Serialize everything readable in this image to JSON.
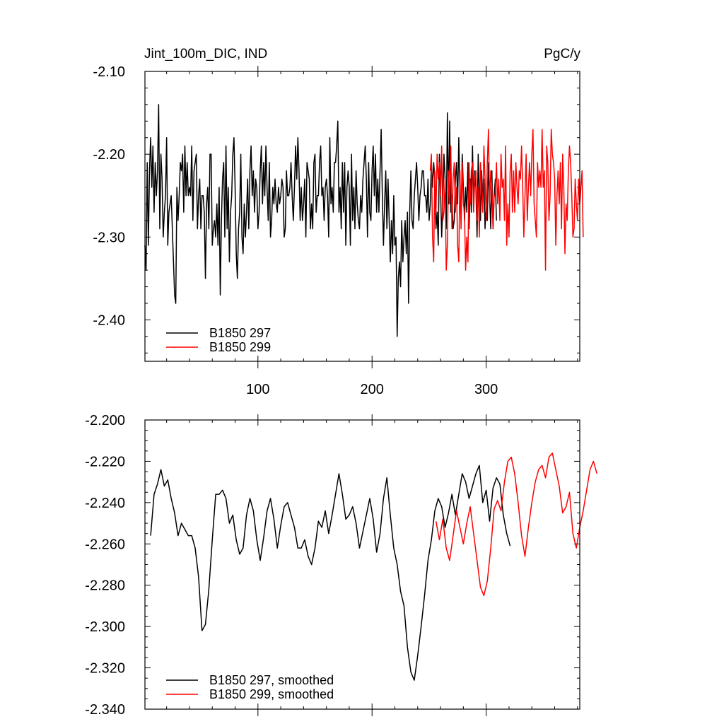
{
  "chart_data": [
    {
      "type": "line",
      "title": "Jint_100m_DIC, IND",
      "units": "PgC/y",
      "xlabel": "",
      "ylabel": "",
      "xlim": [
        1,
        382
      ],
      "ylim": [
        -2.45,
        -2.1
      ],
      "xticks": [
        100,
        200,
        300
      ],
      "xtick_labels": [
        "100",
        "200",
        "300"
      ],
      "yticks": [
        -2.1,
        -2.2,
        -2.3,
        -2.4
      ],
      "ytick_labels": [
        "-2.10",
        "-2.20",
        "-2.30",
        "-2.40"
      ],
      "legend_position": "bottom-left",
      "series": [
        {
          "name": "B1850 297",
          "color": "#000000",
          "x_start": 1,
          "x_step": 1,
          "values": [
            -2.31,
            -2.34,
            -2.21,
            -2.31,
            -2.22,
            -2.18,
            -2.24,
            -2.19,
            -2.27,
            -2.21,
            -2.25,
            -2.22,
            -2.14,
            -2.29,
            -2.2,
            -2.23,
            -2.3,
            -2.27,
            -2.25,
            -2.18,
            -2.31,
            -2.27,
            -2.26,
            -2.25,
            -2.29,
            -2.33,
            -2.37,
            -2.38,
            -2.24,
            -2.28,
            -2.25,
            -2.21,
            -2.22,
            -2.2,
            -2.27,
            -2.19,
            -2.25,
            -2.21,
            -2.25,
            -2.24,
            -2.25,
            -2.19,
            -2.28,
            -2.22,
            -2.21,
            -2.2,
            -2.29,
            -2.25,
            -2.23,
            -2.29,
            -2.25,
            -2.25,
            -2.27,
            -2.35,
            -2.26,
            -2.24,
            -2.29,
            -2.2,
            -2.2,
            -2.31,
            -2.29,
            -2.28,
            -2.3,
            -2.26,
            -2.31,
            -2.24,
            -2.37,
            -2.28,
            -2.23,
            -2.21,
            -2.3,
            -2.19,
            -2.29,
            -2.24,
            -2.33,
            -2.27,
            -2.25,
            -2.2,
            -2.18,
            -2.24,
            -2.32,
            -2.35,
            -2.29,
            -2.27,
            -2.2,
            -2.3,
            -2.32,
            -2.26,
            -2.3,
            -2.27,
            -2.23,
            -2.29,
            -2.22,
            -2.19,
            -2.25,
            -2.22,
            -2.27,
            -2.23,
            -2.24,
            -2.29,
            -2.27,
            -2.22,
            -2.19,
            -2.26,
            -2.21,
            -2.25,
            -2.19,
            -2.24,
            -2.28,
            -2.21,
            -2.3,
            -2.28,
            -2.24,
            -2.26,
            -2.23,
            -2.26,
            -2.27,
            -2.24,
            -2.26,
            -2.25,
            -2.23,
            -2.24,
            -2.3,
            -2.29,
            -2.22,
            -2.25,
            -2.25,
            -2.24,
            -2.21,
            -2.25,
            -2.28,
            -2.24,
            -2.19,
            -2.23,
            -2.18,
            -2.22,
            -2.28,
            -2.24,
            -2.28,
            -2.26,
            -2.23,
            -2.3,
            -2.21,
            -2.22,
            -2.23,
            -2.29,
            -2.26,
            -2.29,
            -2.21,
            -2.2,
            -2.27,
            -2.25,
            -2.25,
            -2.21,
            -2.19,
            -2.25,
            -2.24,
            -2.28,
            -2.24,
            -2.23,
            -2.25,
            -2.3,
            -2.18,
            -2.26,
            -2.24,
            -2.27,
            -2.21,
            -2.21,
            -2.19,
            -2.16,
            -2.27,
            -2.24,
            -2.29,
            -2.21,
            -2.27,
            -2.21,
            -2.31,
            -2.24,
            -2.22,
            -2.24,
            -2.31,
            -2.2,
            -2.28,
            -2.24,
            -2.29,
            -2.22,
            -2.26,
            -2.28,
            -2.29,
            -2.25,
            -2.27,
            -2.23,
            -2.21,
            -2.19,
            -2.23,
            -2.3,
            -2.21,
            -2.27,
            -2.28,
            -2.22,
            -2.19,
            -2.25,
            -2.2,
            -2.27,
            -2.23,
            -2.27,
            -2.22,
            -2.17,
            -2.25,
            -2.31,
            -2.26,
            -2.22,
            -2.29,
            -2.23,
            -2.28,
            -2.33,
            -2.28,
            -2.32,
            -2.25,
            -2.31,
            -2.3,
            -2.42,
            -2.35,
            -2.33,
            -2.36,
            -2.28,
            -2.33,
            -2.3,
            -2.28,
            -2.32,
            -2.27,
            -2.38,
            -2.27,
            -2.22,
            -2.28,
            -2.29,
            -2.25,
            -2.23,
            -2.21,
            -2.24,
            -2.28,
            -2.25,
            -2.24,
            -2.22,
            -2.22,
            -2.25,
            -2.25,
            -2.27,
            -2.23,
            -2.28,
            -2.26,
            -2.21,
            -2.24,
            -2.21,
            -2.23,
            -2.29,
            -2.27,
            -2.31,
            -2.2,
            -2.24,
            -2.3,
            -2.26,
            -2.2,
            -2.23,
            -2.29,
            -2.15,
            -2.26,
            -2.16,
            -2.27,
            -2.25,
            -2.29,
            -2.28,
            -2.23,
            -2.21,
            -2.26,
            -2.18,
            -2.25,
            -2.28,
            -2.2,
            -2.24,
            -2.28,
            -2.24,
            -2.27,
            -2.21,
            -2.29,
            -2.23,
            -2.27,
            -2.19,
            -2.26,
            -2.22,
            -2.24,
            -2.3,
            -2.2,
            -2.25,
            -2.28,
            -2.22,
            -2.26,
            -2.23,
            -2.29,
            -2.26,
            -2.28,
            -2.21,
            -2.25,
            -2.29,
            -2.22,
            -2.29,
            -2.25,
            -2.23,
            -2.28
          ]
        },
        {
          "name": "B1850 299",
          "color": "#ff0000",
          "x_start": 251,
          "x_step": 1,
          "values": [
            -2.22,
            -2.2,
            -2.3,
            -2.33,
            -2.22,
            -2.27,
            -2.2,
            -2.23,
            -2.21,
            -2.25,
            -2.19,
            -2.28,
            -2.27,
            -2.23,
            -2.34,
            -2.31,
            -2.22,
            -2.26,
            -2.19,
            -2.29,
            -2.23,
            -2.21,
            -2.27,
            -2.24,
            -2.31,
            -2.33,
            -2.22,
            -2.29,
            -2.21,
            -2.26,
            -2.27,
            -2.34,
            -2.3,
            -2.33,
            -2.21,
            -2.26,
            -2.22,
            -2.21,
            -2.27,
            -2.23,
            -2.22,
            -2.28,
            -2.24,
            -2.3,
            -2.21,
            -2.24,
            -2.27,
            -2.19,
            -2.23,
            -2.28,
            -2.21,
            -2.17,
            -2.26,
            -2.22,
            -2.24,
            -2.29,
            -2.25,
            -2.25,
            -2.21,
            -2.26,
            -2.23,
            -2.28,
            -2.2,
            -2.24,
            -2.23,
            -2.28,
            -2.19,
            -2.31,
            -2.26,
            -2.3,
            -2.22,
            -2.2,
            -2.27,
            -2.22,
            -2.27,
            -2.21,
            -2.24,
            -2.26,
            -2.22,
            -2.23,
            -2.19,
            -2.24,
            -2.3,
            -2.25,
            -2.2,
            -2.28,
            -2.24,
            -2.21,
            -2.25,
            -2.2,
            -2.17,
            -2.26,
            -2.28,
            -2.3,
            -2.21,
            -2.24,
            -2.22,
            -2.24,
            -2.17,
            -2.24,
            -2.22,
            -2.34,
            -2.19,
            -2.21,
            -2.28,
            -2.25,
            -2.17,
            -2.2,
            -2.21,
            -2.23,
            -2.31,
            -2.25,
            -2.22,
            -2.26,
            -2.21,
            -2.29,
            -2.2,
            -2.24,
            -2.32,
            -2.26,
            -2.28,
            -2.22,
            -2.19,
            -2.21,
            -2.25,
            -2.3,
            -2.29,
            -2.23,
            -2.26,
            -2.28,
            -2.23,
            -2.26,
            -2.24,
            -2.22,
            -2.3
          ]
        }
      ]
    },
    {
      "type": "line",
      "title": "",
      "xlabel": "",
      "ylabel": "",
      "xlim": [
        1,
        382
      ],
      "ylim": [
        -2.34,
        -2.2
      ],
      "xticks": [
        100,
        200,
        300
      ],
      "xtick_labels": [
        "",
        "",
        ""
      ],
      "yticks": [
        -2.2,
        -2.22,
        -2.24,
        -2.26,
        -2.28,
        -2.3,
        -2.32,
        -2.34
      ],
      "ytick_labels": [
        "-2.200",
        "-2.220",
        "-2.240",
        "-2.260",
        "-2.280",
        "-2.300",
        "-2.320",
        "-2.340"
      ],
      "legend_position": "bottom-left",
      "series": [
        {
          "name": "B1850 297, smoothed",
          "color": "#000000",
          "x_start": 6,
          "x_step": 3,
          "values": [
            -2.256,
            -2.236,
            -2.231,
            -2.224,
            -2.232,
            -2.229,
            -2.238,
            -2.245,
            -2.256,
            -2.25,
            -2.253,
            -2.256,
            -2.256,
            -2.262,
            -2.276,
            -2.302,
            -2.299,
            -2.282,
            -2.258,
            -2.236,
            -2.236,
            -2.234,
            -2.238,
            -2.25,
            -2.246,
            -2.258,
            -2.265,
            -2.262,
            -2.246,
            -2.238,
            -2.244,
            -2.258,
            -2.268,
            -2.257,
            -2.244,
            -2.238,
            -2.248,
            -2.262,
            -2.251,
            -2.242,
            -2.24,
            -2.246,
            -2.252,
            -2.262,
            -2.262,
            -2.258,
            -2.266,
            -2.27,
            -2.262,
            -2.249,
            -2.252,
            -2.244,
            -2.255,
            -2.246,
            -2.236,
            -2.226,
            -2.236,
            -2.248,
            -2.246,
            -2.242,
            -2.25,
            -2.262,
            -2.254,
            -2.246,
            -2.238,
            -2.248,
            -2.264,
            -2.255,
            -2.238,
            -2.228,
            -2.246,
            -2.262,
            -2.27,
            -2.283,
            -2.29,
            -2.31,
            -2.322,
            -2.326,
            -2.314,
            -2.3,
            -2.285,
            -2.268,
            -2.258,
            -2.244,
            -2.238,
            -2.242,
            -2.252,
            -2.245,
            -2.236,
            -2.246,
            -2.236,
            -2.226,
            -2.23,
            -2.238,
            -2.232,
            -2.226,
            -2.222,
            -2.24,
            -2.234,
            -2.249,
            -2.233,
            -2.228,
            -2.231,
            -2.246,
            -2.255,
            -2.261
          ]
        },
        {
          "name": "B1850 299, smoothed",
          "color": "#ff0000",
          "x_start": 256,
          "x_step": 3,
          "values": [
            -2.249,
            -2.258,
            -2.248,
            -2.262,
            -2.268,
            -2.256,
            -2.244,
            -2.252,
            -2.26,
            -2.25,
            -2.242,
            -2.255,
            -2.268,
            -2.281,
            -2.285,
            -2.278,
            -2.262,
            -2.243,
            -2.239,
            -2.244,
            -2.23,
            -2.22,
            -2.218,
            -2.226,
            -2.24,
            -2.256,
            -2.266,
            -2.252,
            -2.24,
            -2.23,
            -2.224,
            -2.222,
            -2.228,
            -2.218,
            -2.216,
            -2.224,
            -2.232,
            -2.245,
            -2.242,
            -2.235,
            -2.255,
            -2.262,
            -2.252,
            -2.244,
            -2.234,
            -2.224,
            -2.22,
            -2.226
          ]
        }
      ]
    }
  ]
}
